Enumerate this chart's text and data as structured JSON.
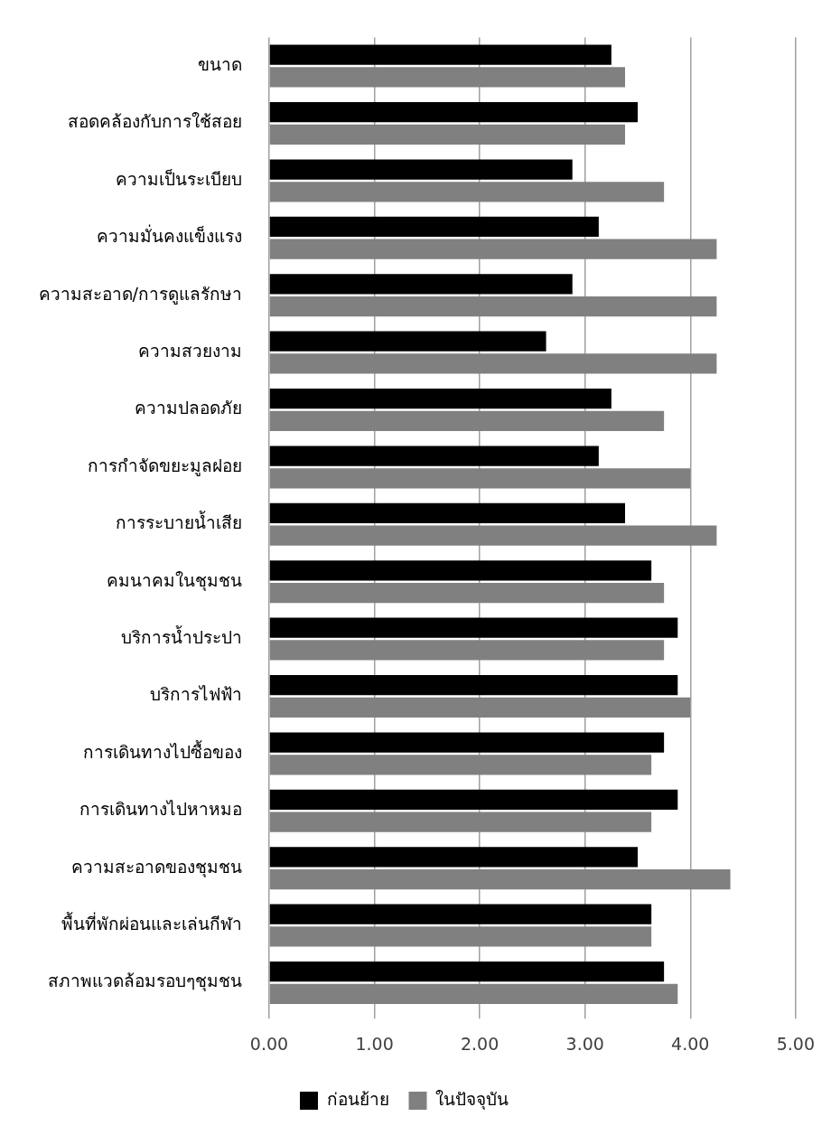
{
  "chart_data": {
    "type": "bar",
    "orientation": "horizontal",
    "categories": [
      "ขนาด",
      "สอดคล้องกับการใช้สอย",
      "ความเป็นระเบียบ",
      "ความมั่นคงแข็งแรง",
      "ความสะอาด/การดูแลรักษา",
      "ความสวยงาม",
      "ความปลอดภัย",
      "การกำจัดขยะมูลฝอย",
      "การระบายน้ำเสีย",
      "คมนาคมในชุมชน",
      "บริการน้ำประปา",
      "บริการไฟฟ้า",
      "การเดินทางไปซื้อของ",
      "การเดินทางไปหาหมอ",
      "ความสะอาดของชุมชน",
      "พื้นที่พักผ่อนและเล่นกีฬา",
      "สภาพแวดล้อมรอบๆชุมชน"
    ],
    "series": [
      {
        "name": "ก่อนย้าย",
        "color": "#000000",
        "values": [
          3.25,
          3.5,
          2.88,
          3.13,
          2.88,
          2.63,
          3.25,
          3.13,
          3.38,
          3.63,
          3.88,
          3.88,
          3.75,
          3.88,
          3.5,
          3.63,
          3.75
        ]
      },
      {
        "name": "ในปัจจุบัน",
        "color": "#808080",
        "values": [
          3.38,
          3.38,
          3.75,
          4.25,
          4.25,
          4.25,
          3.75,
          4.0,
          4.25,
          3.75,
          3.75,
          4.0,
          3.63,
          3.63,
          4.38,
          3.63,
          3.88
        ]
      }
    ],
    "xlim": [
      0,
      5
    ],
    "xticks": [
      {
        "value": 0,
        "label": "0.00"
      },
      {
        "value": 1,
        "label": "1.00"
      },
      {
        "value": 2,
        "label": "2.00"
      },
      {
        "value": 3,
        "label": "3.00"
      },
      {
        "value": 4,
        "label": "4.00"
      },
      {
        "value": 5,
        "label": "5.00"
      }
    ],
    "grid": "x",
    "legend": "bottom"
  }
}
